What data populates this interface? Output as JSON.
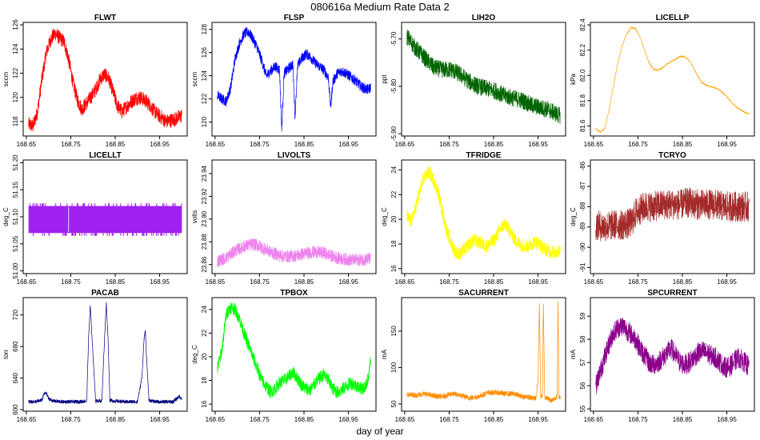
{
  "figure": {
    "title": "080616a   Medium Rate Data 2",
    "xlabel": "day of year",
    "x_tick_labels": [
      "168.65",
      "168.75",
      "168.85",
      "168.95"
    ]
  },
  "chart_data": [
    {
      "type": "line",
      "title": "FLWT",
      "ylabel": "sccm",
      "color": "#ff0000",
      "xlim": [
        168.643,
        169.012
      ],
      "ylim": [
        116.8,
        126.2
      ],
      "y_ticks": [
        118,
        120,
        122,
        124,
        126
      ],
      "y_tick_labels": [
        "118",
        "120",
        "122",
        "124",
        "126"
      ],
      "x": [
        168.655,
        168.665,
        168.675,
        168.685,
        168.695,
        168.705,
        168.715,
        168.725,
        168.735,
        168.745,
        168.755,
        168.765,
        168.775,
        168.785,
        168.795,
        168.805,
        168.815,
        168.825,
        168.835,
        168.845,
        168.855,
        168.865,
        168.875,
        168.885,
        168.895,
        168.905,
        168.915,
        168.925,
        168.935,
        168.945,
        168.955,
        168.965,
        168.975,
        168.985,
        168.995,
        169.0
      ],
      "y": [
        117.8,
        117.6,
        118.8,
        121.5,
        123.7,
        124.8,
        125.3,
        124.9,
        124.6,
        123.2,
        121.2,
        119.8,
        119.0,
        119.5,
        120.0,
        120.6,
        121.4,
        121.9,
        121.6,
        120.5,
        119.3,
        118.8,
        119.2,
        119.6,
        119.9,
        120.0,
        119.8,
        119.5,
        119.0,
        118.6,
        118.3,
        118.0,
        118.1,
        118.2,
        118.4,
        118.5
      ],
      "noise": 0.6
    },
    {
      "type": "line",
      "title": "FLSP",
      "ylabel": "sccm",
      "color": "#0000ff",
      "xlim": [
        168.643,
        169.012
      ],
      "ylim": [
        118.8,
        128.6
      ],
      "y_ticks": [
        120,
        122,
        124,
        126,
        128
      ],
      "y_tick_labels": [
        "120",
        "122",
        "124",
        "126",
        "128"
      ],
      "x": [
        168.655,
        168.665,
        168.675,
        168.685,
        168.695,
        168.705,
        168.715,
        168.725,
        168.735,
        168.745,
        168.755,
        168.765,
        168.775,
        168.785,
        168.795,
        168.8,
        168.805,
        168.815,
        168.825,
        168.83,
        168.835,
        168.845,
        168.855,
        168.865,
        168.875,
        168.885,
        168.895,
        168.905,
        168.91,
        168.915,
        168.925,
        168.935,
        168.945,
        168.955,
        168.965,
        168.975,
        168.985,
        168.995,
        169.0
      ],
      "y": [
        122.3,
        122.0,
        121.8,
        123.0,
        125.5,
        126.8,
        127.6,
        127.8,
        127.2,
        126.4,
        125.3,
        124.0,
        124.4,
        124.8,
        124.5,
        119.2,
        124.2,
        124.6,
        125.0,
        120.3,
        124.8,
        125.5,
        125.9,
        125.6,
        125.1,
        124.8,
        124.5,
        123.8,
        121.2,
        123.5,
        124.2,
        124.4,
        124.2,
        123.9,
        123.6,
        123.2,
        122.9,
        122.8,
        123.0
      ],
      "noise": 0.45
    },
    {
      "type": "line",
      "title": "LIH2O",
      "ylabel": "ppt",
      "color": "#006400",
      "xlim": [
        168.643,
        169.012
      ],
      "ylim": [
        -5.905,
        -5.665
      ],
      "y_ticks": [
        -5.9,
        -5.8,
        -5.7
      ],
      "y_tick_labels": [
        "-5.90",
        "-5.80",
        "-5.70"
      ],
      "x": [
        168.655,
        168.675,
        168.695,
        168.715,
        168.735,
        168.755,
        168.775,
        168.795,
        168.815,
        168.835,
        168.855,
        168.875,
        168.895,
        168.915,
        168.935,
        168.955,
        168.975,
        168.995,
        169.0
      ],
      "y": [
        -5.695,
        -5.72,
        -5.74,
        -5.76,
        -5.765,
        -5.765,
        -5.775,
        -5.79,
        -5.8,
        -5.805,
        -5.81,
        -5.82,
        -5.825,
        -5.83,
        -5.84,
        -5.845,
        -5.85,
        -5.86,
        -5.862
      ],
      "noise": 0.018
    },
    {
      "type": "line",
      "title": "LICELLP",
      "ylabel": "kPa",
      "color": "#ffa500",
      "xlim": [
        168.643,
        169.012
      ],
      "ylim": [
        81.52,
        82.42
      ],
      "y_ticks": [
        81.6,
        81.8,
        82.0,
        82.2,
        82.4
      ],
      "y_tick_labels": [
        "81.6",
        "81.8",
        "82.0",
        "82.2",
        "82.4"
      ],
      "x": [
        168.655,
        168.665,
        168.675,
        168.685,
        168.695,
        168.705,
        168.715,
        168.725,
        168.735,
        168.745,
        168.755,
        168.765,
        168.775,
        168.785,
        168.795,
        168.805,
        168.815,
        168.825,
        168.835,
        168.845,
        168.855,
        168.865,
        168.875,
        168.885,
        168.895,
        168.905,
        168.915,
        168.925,
        168.935,
        168.945,
        168.955,
        168.965,
        168.975,
        168.985,
        168.995,
        169.0
      ],
      "y": [
        81.58,
        81.55,
        81.58,
        81.72,
        81.92,
        82.1,
        82.24,
        82.33,
        82.38,
        82.37,
        82.3,
        82.2,
        82.1,
        82.05,
        82.04,
        82.06,
        82.09,
        82.11,
        82.13,
        82.15,
        82.15,
        82.12,
        82.06,
        81.99,
        81.94,
        81.92,
        81.91,
        81.9,
        81.88,
        81.85,
        81.81,
        81.77,
        81.74,
        81.72,
        81.7,
        81.7
      ],
      "noise": 0.005
    },
    {
      "type": "band",
      "title": "LICELLT",
      "ylabel": "deg_C",
      "color": "#a020f0",
      "xlim": [
        168.643,
        169.012
      ],
      "ylim": [
        50.995,
        51.205
      ],
      "y_ticks": [
        51.0,
        51.05,
        51.1,
        51.15,
        51.2
      ],
      "y_tick_labels": [
        "51.00",
        "51.05",
        "51.10",
        "51.15",
        "51.20"
      ],
      "x_range": [
        168.655,
        169.0
      ],
      "band": [
        51.07,
        51.12
      ],
      "spikes_low": 51.065,
      "spikes_high": 51.125,
      "gap_x": 168.745
    },
    {
      "type": "line",
      "title": "LIVOLTS",
      "ylabel": "volts",
      "color": "#ee82ee",
      "xlim": [
        168.643,
        169.012
      ],
      "ylim": [
        23.852,
        23.952
      ],
      "y_ticks": [
        23.86,
        23.88,
        23.9,
        23.92,
        23.94
      ],
      "y_tick_labels": [
        "23.86",
        "23.88",
        "23.90",
        "23.92",
        "23.94"
      ],
      "x": [
        168.655,
        168.675,
        168.695,
        168.715,
        168.735,
        168.745,
        168.755,
        168.775,
        168.795,
        168.815,
        168.835,
        168.855,
        168.875,
        168.895,
        168.915,
        168.935,
        168.955,
        168.975,
        168.995,
        169.0
      ],
      "y": [
        23.863,
        23.866,
        23.872,
        23.876,
        23.878,
        23.877,
        23.875,
        23.871,
        23.868,
        23.867,
        23.868,
        23.87,
        23.871,
        23.87,
        23.867,
        23.865,
        23.864,
        23.864,
        23.865,
        23.865
      ],
      "noise": 0.0055
    },
    {
      "type": "line",
      "title": "TFRIDGE",
      "ylabel": "deg_C",
      "color": "#ffff00",
      "xlim": [
        168.643,
        169.012
      ],
      "ylim": [
        15.6,
        24.8
      ],
      "y_ticks": [
        16,
        18,
        20,
        22,
        24
      ],
      "y_tick_labels": [
        "16",
        "18",
        "20",
        "22",
        "24"
      ],
      "x": [
        168.655,
        168.665,
        168.675,
        168.685,
        168.695,
        168.705,
        168.715,
        168.725,
        168.735,
        168.745,
        168.755,
        168.765,
        168.775,
        168.785,
        168.795,
        168.805,
        168.815,
        168.825,
        168.835,
        168.845,
        168.855,
        168.865,
        168.875,
        168.885,
        168.895,
        168.905,
        168.915,
        168.925,
        168.935,
        168.945,
        168.955,
        168.965,
        168.975,
        168.985,
        168.995,
        169.0
      ],
      "y": [
        20.2,
        19.8,
        21.0,
        22.4,
        23.5,
        23.8,
        23.2,
        22.2,
        20.6,
        19.0,
        18.0,
        17.3,
        17.2,
        17.6,
        18.0,
        18.3,
        18.2,
        18.0,
        17.8,
        18.1,
        18.5,
        19.2,
        19.6,
        19.2,
        18.5,
        18.1,
        17.9,
        17.8,
        18.0,
        18.2,
        17.9,
        17.6,
        17.4,
        17.3,
        17.4,
        17.5
      ],
      "noise": 0.55
    },
    {
      "type": "line",
      "title": "TCRYO",
      "ylabel": "deg_C",
      "color": "#a52a2a",
      "xlim": [
        168.643,
        169.012
      ],
      "ylim": [
        -91.3,
        -85.7
      ],
      "y_ticks": [
        -91,
        -90,
        -89,
        -88,
        -87,
        -86
      ],
      "y_tick_labels": [
        "-91",
        "-90",
        "-89",
        "-88",
        "-87",
        "-86"
      ],
      "x": [
        168.655,
        168.675,
        168.695,
        168.715,
        168.735,
        168.745,
        168.765,
        168.785,
        168.805,
        168.825,
        168.845,
        168.865,
        168.885,
        168.905,
        168.925,
        168.945,
        168.965,
        168.985,
        169.0
      ],
      "y": [
        -88.9,
        -89.0,
        -88.9,
        -88.9,
        -88.8,
        -88.3,
        -88.0,
        -88.0,
        -87.9,
        -87.9,
        -87.9,
        -87.8,
        -87.9,
        -87.9,
        -87.9,
        -88.0,
        -88.0,
        -88.0,
        -88.0
      ],
      "noise": 0.75
    },
    {
      "type": "line",
      "title": "PACAB",
      "ylabel": "torr",
      "color": "#000080",
      "xlim": [
        168.643,
        169.012
      ],
      "ylim": [
        598,
        742
      ],
      "y_ticks": [
        600,
        640,
        680,
        720
      ],
      "y_tick_labels": [
        "600",
        "640",
        "680",
        "720"
      ],
      "x": [
        168.655,
        168.67,
        168.685,
        168.69,
        168.695,
        168.7,
        168.71,
        168.73,
        168.75,
        168.77,
        168.786,
        168.79,
        168.794,
        168.798,
        168.806,
        168.82,
        168.826,
        168.83,
        168.834,
        168.838,
        168.846,
        168.87,
        168.9,
        168.91,
        168.915,
        168.918,
        168.92,
        168.926,
        168.94,
        168.96,
        168.98,
        168.995,
        169.0
      ],
      "y": [
        610,
        610,
        612,
        620,
        621,
        614,
        611,
        610,
        610,
        610,
        611,
        690,
        732,
        690,
        611,
        611,
        690,
        735,
        690,
        612,
        611,
        610,
        610,
        640,
        690,
        700,
        672,
        612,
        610,
        610,
        610,
        617,
        613
      ],
      "noise": 2.2
    },
    {
      "type": "line",
      "title": "TPBOX",
      "ylabel": "deg_C",
      "color": "#00ff00",
      "xlim": [
        168.643,
        169.012
      ],
      "ylim": [
        15.4,
        25.0
      ],
      "y_ticks": [
        16,
        18,
        20,
        22,
        24
      ],
      "y_tick_labels": [
        "16",
        "18",
        "20",
        "22",
        "24"
      ],
      "x": [
        168.655,
        168.665,
        168.675,
        168.685,
        168.695,
        168.705,
        168.715,
        168.725,
        168.735,
        168.745,
        168.755,
        168.765,
        168.775,
        168.785,
        168.795,
        168.805,
        168.815,
        168.825,
        168.835,
        168.845,
        168.855,
        168.865,
        168.875,
        168.885,
        168.895,
        168.905,
        168.915,
        168.925,
        168.935,
        168.945,
        168.955,
        168.965,
        168.975,
        168.985,
        168.995,
        169.0
      ],
      "y": [
        19.0,
        20.5,
        23.6,
        24.2,
        24.0,
        23.2,
        22.0,
        21.0,
        20.0,
        19.0,
        18.0,
        17.5,
        17.0,
        17.3,
        17.8,
        18.0,
        18.3,
        18.7,
        18.2,
        17.6,
        17.3,
        17.2,
        17.8,
        18.2,
        18.5,
        18.0,
        17.3,
        17.0,
        17.2,
        17.5,
        17.8,
        17.6,
        17.4,
        17.3,
        18.2,
        19.8
      ],
      "noise": 0.55
    },
    {
      "type": "line",
      "title": "SACURRENT",
      "ylabel": "mA",
      "color": "#ff8c00",
      "xlim": [
        168.643,
        169.012
      ],
      "ylim": [
        40,
        196
      ],
      "y_ticks": [
        50,
        100,
        150
      ],
      "y_tick_labels": [
        "50",
        "100",
        "150"
      ],
      "x": [
        168.655,
        168.675,
        168.695,
        168.715,
        168.735,
        168.755,
        168.775,
        168.795,
        168.815,
        168.835,
        168.855,
        168.875,
        168.895,
        168.915,
        168.925,
        168.935,
        168.945,
        168.95,
        168.953,
        168.956,
        168.96,
        168.962,
        168.965,
        168.97,
        168.98,
        168.993,
        168.995,
        168.997,
        169.0
      ],
      "y": [
        63,
        62,
        64,
        61,
        60,
        64,
        62,
        58,
        60,
        65,
        66,
        64,
        64,
        60,
        60,
        58,
        58,
        84,
        190,
        60,
        60,
        190,
        60,
        58,
        55,
        60,
        190,
        60,
        60
      ],
      "noise": 3.5
    },
    {
      "type": "line",
      "title": "SPCURRENT",
      "ylabel": "mA",
      "color": "#8b008b",
      "xlim": [
        168.643,
        169.012
      ],
      "ylim": [
        54.9,
        59.8
      ],
      "y_ticks": [
        55,
        56,
        57,
        58,
        59
      ],
      "y_tick_labels": [
        "55",
        "56",
        "57",
        "58",
        "59"
      ],
      "x": [
        168.655,
        168.665,
        168.675,
        168.685,
        168.695,
        168.705,
        168.715,
        168.725,
        168.735,
        168.745,
        168.755,
        168.765,
        168.775,
        168.785,
        168.795,
        168.805,
        168.815,
        168.825,
        168.835,
        168.845,
        168.855,
        168.865,
        168.875,
        168.885,
        168.895,
        168.905,
        168.915,
        168.925,
        168.935,
        168.945,
        168.955,
        168.965,
        168.975,
        168.985,
        168.995,
        169.0
      ],
      "y": [
        56.0,
        56.6,
        57.2,
        57.8,
        58.3,
        58.5,
        58.6,
        58.4,
        58.2,
        58.0,
        57.6,
        57.3,
        57.0,
        56.9,
        57.0,
        57.2,
        57.4,
        57.6,
        57.3,
        57.0,
        56.9,
        57.0,
        57.2,
        57.4,
        57.5,
        57.4,
        57.3,
        57.2,
        57.0,
        56.8,
        56.8,
        57.0,
        57.2,
        57.1,
        56.9,
        56.8
      ],
      "noise": 0.45
    }
  ]
}
